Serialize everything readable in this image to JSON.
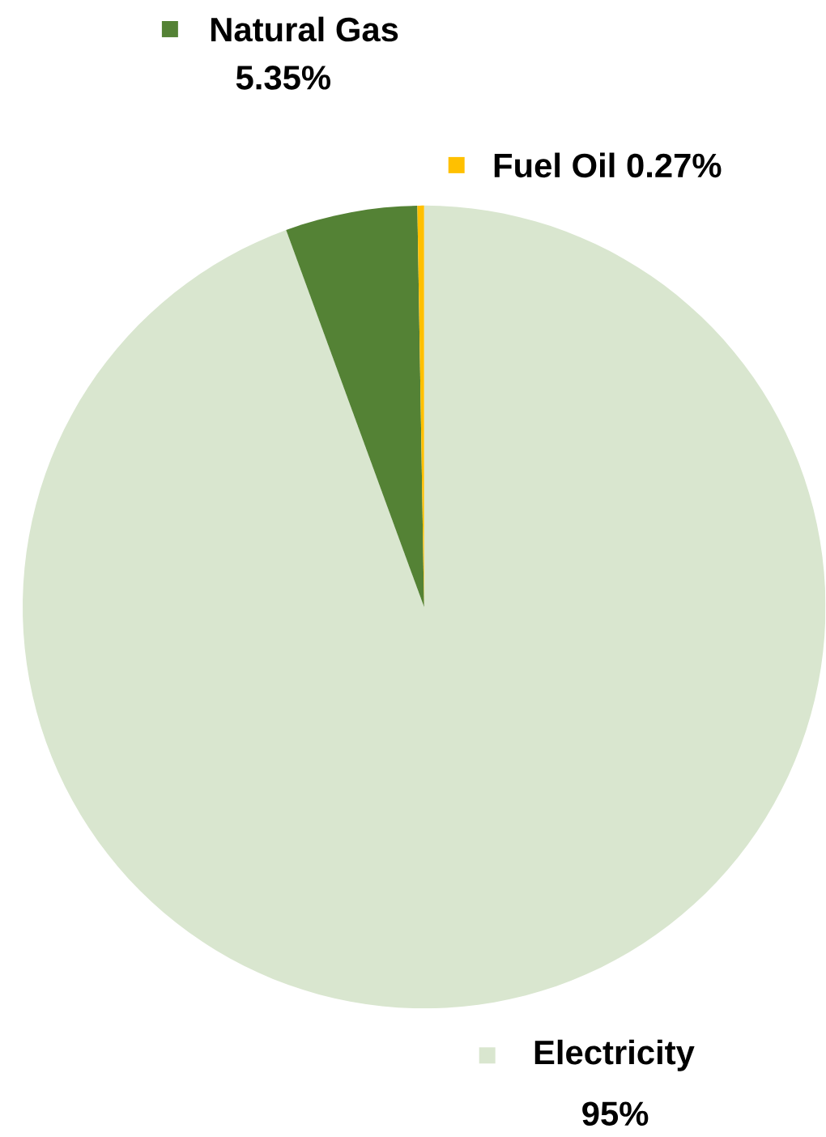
{
  "chart_data": {
    "type": "pie",
    "categories": [
      "Electricity",
      "Natural Gas",
      "Fuel Oil"
    ],
    "values": [
      95,
      5.35,
      0.27
    ],
    "colors": [
      "#d9e6cf",
      "#548235",
      "#ffc000"
    ],
    "value_labels": [
      "95%",
      "5.35%",
      "0.27%"
    ],
    "legend": "top"
  }
}
